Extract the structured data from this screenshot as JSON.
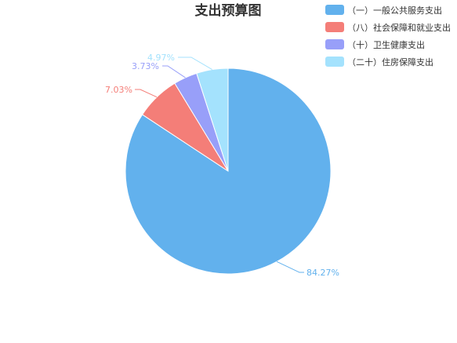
{
  "chart_data": {
    "type": "pie",
    "title": "支出预算图",
    "categories": [
      "（一）一般公共服务支出",
      "（八）社会保障和就业支出",
      "（十）卫生健康支出",
      "（二十）住房保障支出"
    ],
    "values": [
      84.27,
      7.03,
      3.73,
      4.97
    ],
    "data_labels": [
      "84.27%",
      "7.03%",
      "3.73%",
      "4.97%"
    ],
    "colors": [
      "#62b1ed",
      "#f47e78",
      "#989ff9",
      "#a4e2fd"
    ],
    "legend_position": "top-right"
  }
}
